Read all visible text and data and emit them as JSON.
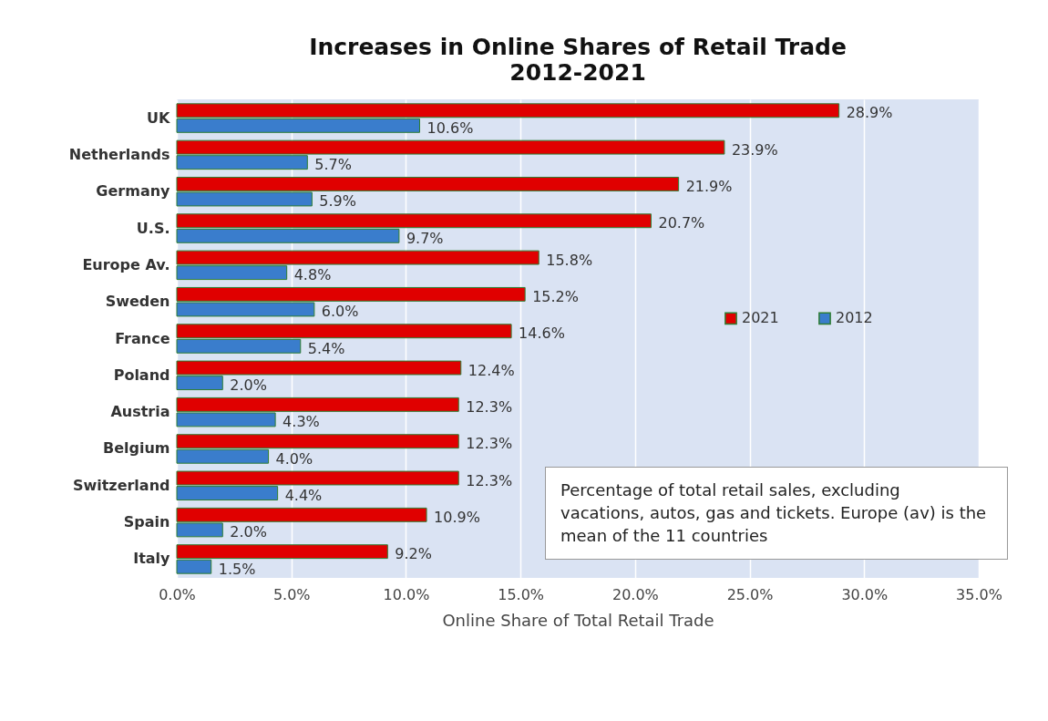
{
  "chart_data": {
    "type": "bar",
    "orientation": "horizontal",
    "title": "Increases in Online Shares of Retail Trade",
    "subtitle": "2012-2021",
    "xlabel": "Online Share of Total Retail Trade",
    "categories": [
      "UK",
      "Netherlands",
      "Germany",
      "U.S.",
      "Europe Av.",
      "Sweden",
      "France",
      "Poland",
      "Austria",
      "Belgium",
      "Switzerland",
      "Spain",
      "Italy"
    ],
    "series": [
      {
        "name": "2021",
        "color": "#e00000",
        "values": [
          28.9,
          23.9,
          21.9,
          20.7,
          15.8,
          15.2,
          14.6,
          12.4,
          12.3,
          12.3,
          12.3,
          10.9,
          9.2
        ],
        "value_labels": [
          "28.9%",
          "23.9%",
          "21.9%",
          "20.7%",
          "15.8%",
          "15.2%",
          "14.6%",
          "12.4%",
          "12.3%",
          "12.3%",
          "12.3%",
          "10.9%",
          "9.2%"
        ]
      },
      {
        "name": "2012",
        "color": "#3a7dcc",
        "values": [
          10.6,
          5.7,
          5.9,
          9.7,
          4.8,
          6.0,
          5.4,
          2.0,
          4.3,
          4.0,
          4.4,
          2.0,
          1.5
        ],
        "value_labels": [
          "10.6%",
          "5.7%",
          "5.9%",
          "9.7%",
          "4.8%",
          "6.0%",
          "5.4%",
          "2.0%",
          "4.3%",
          "4.0%",
          "4.4%",
          "2.0%",
          "1.5%"
        ]
      }
    ],
    "xlim": [
      0,
      35
    ],
    "xticks": [
      {
        "value": 0,
        "label": "0.0%"
      },
      {
        "value": 5,
        "label": "5.0%"
      },
      {
        "value": 10,
        "label": "10.0%"
      },
      {
        "value": 15,
        "label": "15.0%"
      },
      {
        "value": 20,
        "label": "20.0%"
      },
      {
        "value": 25,
        "label": "25.0%"
      },
      {
        "value": 30,
        "label": "30.0%"
      },
      {
        "value": 35,
        "label": "35.0%"
      }
    ],
    "grid": "x",
    "legend": "right",
    "annotations": [
      "Percentage of total retail sales, excluding vacations, autos, gas and tickets. Europe (av) is the mean of the 11 countries"
    ]
  }
}
